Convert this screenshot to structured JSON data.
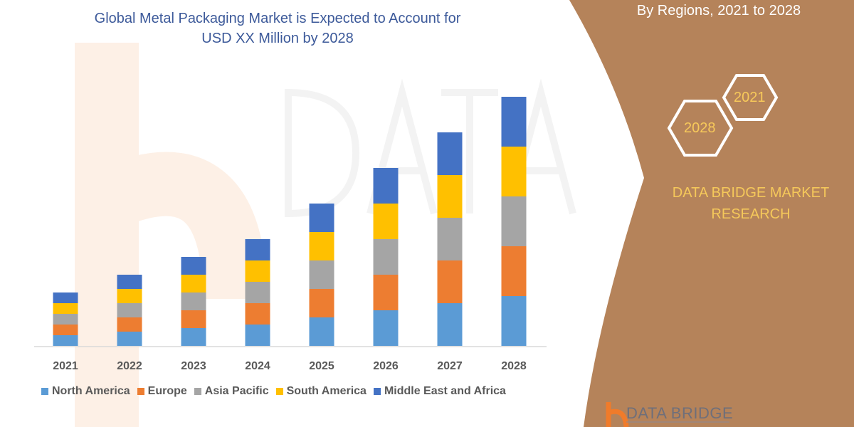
{
  "header": {
    "title_line1": "Global Metal Packaging Market is Expected to Account for",
    "title_line2": "USD XX Million by 2028"
  },
  "side_panel": {
    "subtitle": "By Regions, 2021 to 2028",
    "hex_left": "2028",
    "hex_right": "2021",
    "brand_line1": "DATA BRIDGE MARKET",
    "brand_line2": "RESEARCH",
    "footer_logo": "DATA BRIDGE",
    "panel_color": "#b5835a"
  },
  "chart_data": {
    "type": "bar",
    "stacked": true,
    "categories": [
      "2021",
      "2022",
      "2023",
      "2024",
      "2025",
      "2026",
      "2027",
      "2028"
    ],
    "series": [
      {
        "name": "North America",
        "color": "#5b9bd5",
        "values": [
          15,
          20,
          25,
          30,
          40,
          50,
          60,
          70
        ]
      },
      {
        "name": "Europe",
        "color": "#ed7d31",
        "values": [
          15,
          20,
          25,
          30,
          40,
          50,
          60,
          70
        ]
      },
      {
        "name": "Asia Pacific",
        "color": "#a5a5a5",
        "values": [
          15,
          20,
          25,
          30,
          40,
          50,
          60,
          70
        ]
      },
      {
        "name": "South America",
        "color": "#ffc000",
        "values": [
          15,
          20,
          25,
          30,
          40,
          50,
          60,
          70
        ]
      },
      {
        "name": "Middle East and Africa",
        "color": "#4472c4",
        "values": [
          15,
          20,
          25,
          30,
          40,
          50,
          60,
          70
        ]
      }
    ],
    "value_axis_shown": false,
    "grid": false,
    "legend": "bottom"
  }
}
